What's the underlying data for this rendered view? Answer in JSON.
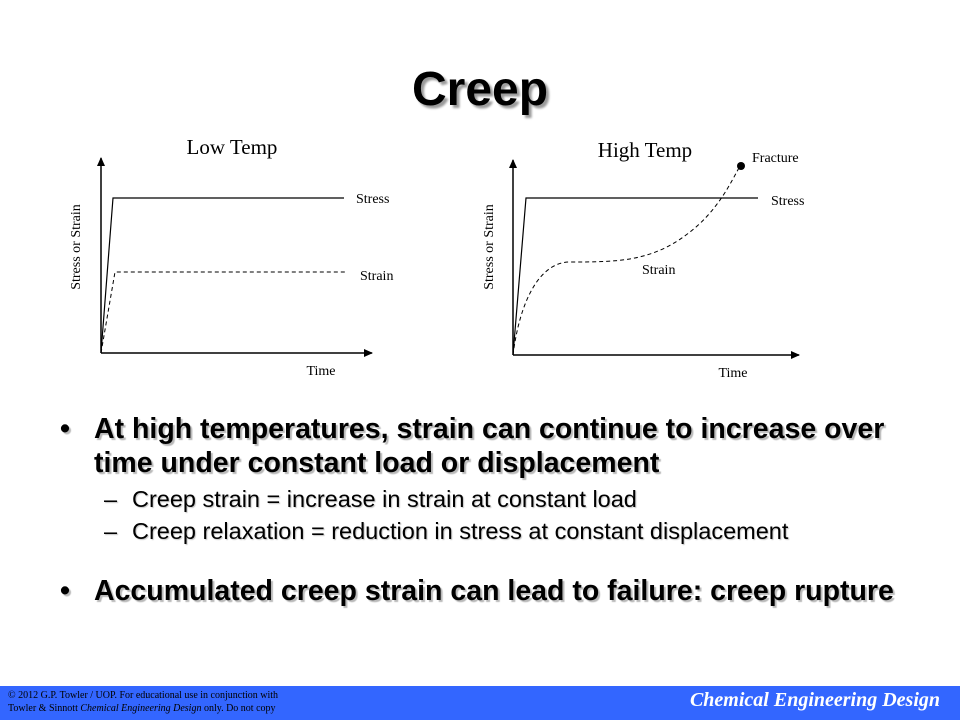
{
  "slide": {
    "title": "Creep"
  },
  "low_temp": {
    "heading": "Low Temp",
    "y_axis_label": "Stress or Strain",
    "x_axis_label": "Time",
    "stress_label": "Stress",
    "strain_label": "Strain"
  },
  "high_temp": {
    "heading": "High Temp",
    "y_axis_label": "Stress or Strain",
    "x_axis_label": "Time",
    "stress_label": "Stress",
    "strain_label": "Strain",
    "fracture_label": "Fracture"
  },
  "bullets": [
    {
      "text": "At high temperatures, strain can continue to increase over time under constant load or displacement",
      "sub": [
        "Creep strain = increase in strain at constant load",
        "Creep relaxation = reduction in stress at constant displacement"
      ]
    },
    {
      "text": "Accumulated creep strain can lead to failure: creep rupture"
    }
  ],
  "footer": {
    "copyright_line1": "© 2012 G.P. Towler / UOP. For educational use in conjunction with",
    "copyright_line2_prefix": "Towler & Sinnott ",
    "copyright_line2_italic": "Chemical Engineering Design",
    "copyright_line2_suffix": " only. Do not copy",
    "brand": "Chemical Engineering Design",
    "background_color": "#3366ff"
  }
}
